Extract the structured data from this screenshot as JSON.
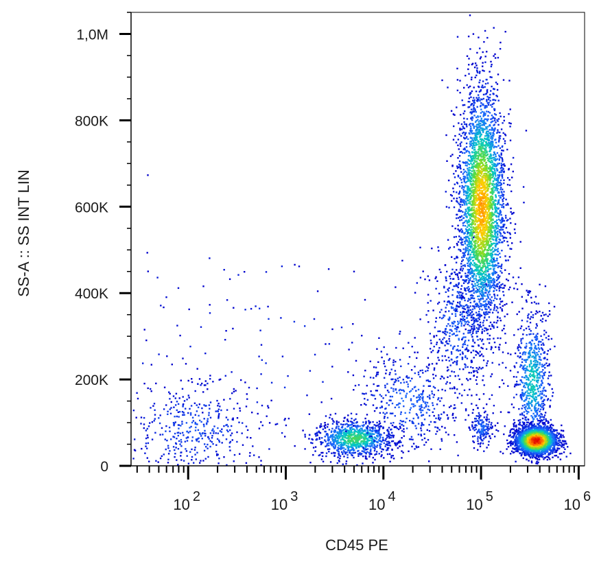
{
  "chart_data": {
    "type": "scatter",
    "style": "flow-cytometry density dot plot",
    "title": "",
    "xlabel": "CD45 PE",
    "ylabel": "SS-A :: SS INT LIN",
    "x_scale": "log",
    "x_range": [
      26,
      1150000
    ],
    "y_scale": "linear",
    "y_range": [
      0,
      1050000
    ],
    "x_ticks": [
      {
        "value": 100,
        "base": "10",
        "exp": "2"
      },
      {
        "value": 1000,
        "base": "10",
        "exp": "3"
      },
      {
        "value": 10000,
        "base": "10",
        "exp": "4"
      },
      {
        "value": 100000,
        "base": "10",
        "exp": "5"
      },
      {
        "value": 1000000,
        "base": "10",
        "exp": "6"
      }
    ],
    "y_ticks": [
      {
        "value": 0,
        "label": "0"
      },
      {
        "value": 200000,
        "label": "200K"
      },
      {
        "value": 400000,
        "label": "400K"
      },
      {
        "value": 600000,
        "label": "600K"
      },
      {
        "value": 800000,
        "label": "800K"
      },
      {
        "value": 1000000,
        "label": "1,0M"
      }
    ],
    "grid": false,
    "color_scale": [
      "#0000cc",
      "#1e6bff",
      "#00c8c8",
      "#66dd33",
      "#ffd200",
      "#ff6a00",
      "#e00000"
    ],
    "populations": [
      {
        "x_center": 110,
        "y_center": 90000,
        "x_spread_decades": 0.35,
        "y_spread": 55000,
        "events": 420,
        "peak_density": 0.12
      },
      {
        "x_center": 5000,
        "y_center": 65000,
        "x_spread_decades": 0.2,
        "y_spread": 22000,
        "events": 900,
        "peak_density": 0.45
      },
      {
        "x_center": 18000,
        "y_center": 150000,
        "x_spread_decades": 0.28,
        "y_spread": 60000,
        "events": 420,
        "peak_density": 0.15
      },
      {
        "x_center": 60000,
        "y_center": 330000,
        "x_spread_decades": 0.18,
        "y_spread": 90000,
        "events": 500,
        "peak_density": 0.15
      },
      {
        "x_center": 100000,
        "y_center": 600000,
        "x_spread_decades": 0.12,
        "y_spread": 140000,
        "events": 3400,
        "peak_density": 0.75
      },
      {
        "x_center": 100000,
        "y_center": 90000,
        "x_spread_decades": 0.06,
        "y_spread": 20000,
        "events": 160,
        "peak_density": 0.18
      },
      {
        "x_center": 330000,
        "y_center": 200000,
        "x_spread_decades": 0.09,
        "y_spread": 80000,
        "events": 700,
        "peak_density": 0.35
      },
      {
        "x_center": 360000,
        "y_center": 60000,
        "x_spread_decades": 0.11,
        "y_spread": 17000,
        "events": 2200,
        "peak_density": 1.0
      },
      {
        "x_center": 500,
        "y_center": 250000,
        "x_spread_decades": 0.9,
        "y_spread": 140000,
        "events": 140,
        "peak_density": 0.05
      }
    ]
  }
}
